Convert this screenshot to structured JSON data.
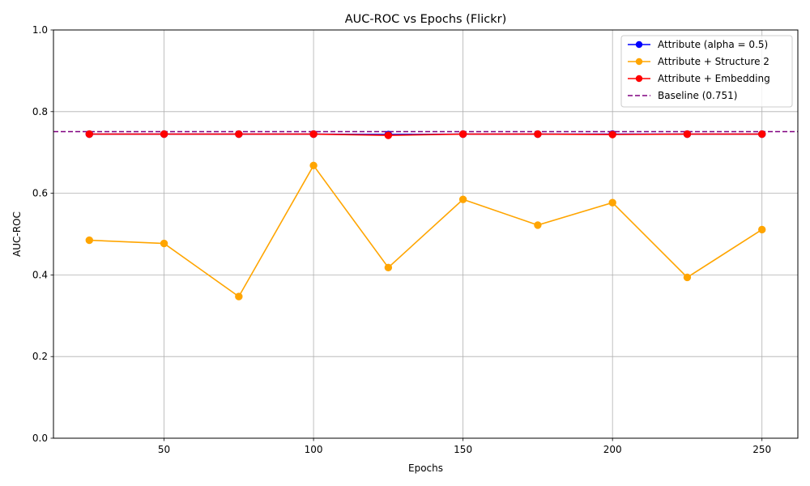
{
  "chart_data": {
    "type": "line",
    "title": "AUC-ROC vs Epochs (Flickr)",
    "xlabel": "Epochs",
    "ylabel": "AUC-ROC",
    "xlim": [
      13,
      262
    ],
    "ylim": [
      0.0,
      1.0
    ],
    "x_ticks": [
      50,
      100,
      150,
      200,
      250
    ],
    "y_ticks": [
      "0.0",
      "0.2",
      "0.4",
      "0.6",
      "0.8",
      "1.0"
    ],
    "grid": true,
    "legend_position": "top-right",
    "x": [
      25,
      50,
      75,
      100,
      125,
      150,
      175,
      200,
      225,
      250
    ],
    "series": [
      {
        "name": "Attribute (alpha = 0.5)",
        "color": "#0000ff",
        "marker": "circle",
        "linestyle": "solid",
        "values": [
          0.745,
          0.745,
          0.745,
          0.745,
          0.744,
          0.745,
          0.745,
          0.745,
          0.745,
          0.745
        ]
      },
      {
        "name": "Attribute + Structure 2",
        "color": "#ffa500",
        "marker": "circle",
        "linestyle": "solid",
        "values": [
          0.485,
          0.477,
          0.347,
          0.668,
          0.418,
          0.585,
          0.522,
          0.577,
          0.394,
          0.511
        ]
      },
      {
        "name": "Attribute + Embedding",
        "color": "#ff0000",
        "marker": "circle",
        "linestyle": "solid",
        "values": [
          0.745,
          0.745,
          0.745,
          0.745,
          0.742,
          0.745,
          0.745,
          0.744,
          0.745,
          0.745
        ]
      }
    ],
    "baseline": {
      "name": "Baseline (0.751)",
      "value": 0.751,
      "color": "#800080",
      "linestyle": "dashed"
    }
  }
}
